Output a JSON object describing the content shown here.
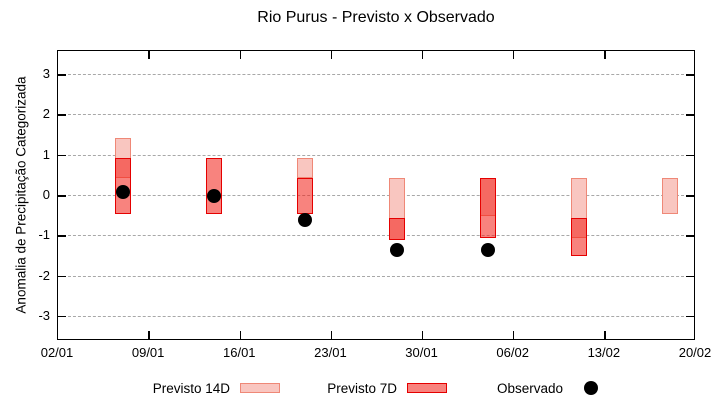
{
  "chart_data": {
    "type": "range-bar",
    "title": "Rio Purus - Previsto x Observado",
    "ylabel": "Anomalia de Precipitação Categorizada",
    "xlabel": "",
    "grid": "horizontal-dashed",
    "legend_position": "bottom-outside",
    "ylim": [
      -3.6,
      3.6
    ],
    "yticks": [
      -3,
      -2,
      -1,
      0,
      1,
      2,
      3
    ],
    "x_axis": {
      "tick_labels": [
        "02/01",
        "09/01",
        "16/01",
        "23/01",
        "30/01",
        "06/02",
        "13/02",
        "20/02"
      ],
      "tick_day_offsets": [
        0,
        7,
        14,
        21,
        28,
        35,
        42,
        49
      ],
      "range_days": [
        0,
        49
      ]
    },
    "bars": [
      {
        "date": "07/01",
        "day_offset": 5,
        "previsto_14d": [
          0.45,
          1.45
        ],
        "previsto_7d": [
          -0.45,
          0.95
        ],
        "observado": 0.1
      },
      {
        "date": "14/01",
        "day_offset": 12,
        "previsto_14d": null,
        "previsto_7d": [
          -0.45,
          0.95
        ],
        "observado": 0.0
      },
      {
        "date": "21/01",
        "day_offset": 19,
        "previsto_14d": [
          0.45,
          0.95
        ],
        "previsto_7d": [
          -0.45,
          0.45
        ],
        "observado": -0.6
      },
      {
        "date": "28/01",
        "day_offset": 26,
        "previsto_14d": [
          -1.1,
          0.45
        ],
        "previsto_7d": [
          -1.1,
          -0.55
        ],
        "observado": -1.35
      },
      {
        "date": "04/02",
        "day_offset": 33,
        "previsto_14d": [
          -0.5,
          0.45
        ],
        "previsto_7d": [
          -1.05,
          0.45
        ],
        "observado": -1.35
      },
      {
        "date": "11/02",
        "day_offset": 40,
        "previsto_14d": [
          -1.05,
          0.45
        ],
        "previsto_7d": [
          -1.5,
          -0.55
        ],
        "observado": null
      },
      {
        "date": "18/02",
        "day_offset": 47,
        "previsto_14d": [
          -0.45,
          0.45
        ],
        "previsto_7d": null,
        "observado": null
      }
    ]
  },
  "legend": {
    "items": [
      {
        "label": "Previsto 14D",
        "swatch": "box-14d"
      },
      {
        "label": "Previsto 7D",
        "swatch": "box-7d"
      },
      {
        "label": "Observado",
        "swatch": "black-dot"
      }
    ]
  },
  "colors": {
    "previsto14_fill": "#f9c6c0",
    "previsto14_border": "#ef8877",
    "previsto7_fill": "rgba(242,30,20,0.55)",
    "previsto7_border": "#e50000",
    "observado": "#000000",
    "grid": "#a8a8a8",
    "axis": "#000000"
  }
}
